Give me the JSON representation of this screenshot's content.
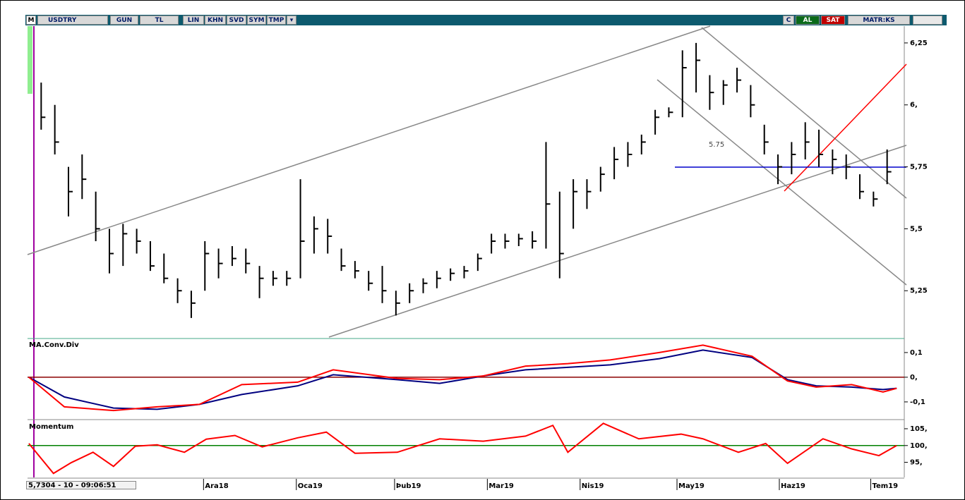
{
  "toolbar": {
    "menu": "M",
    "symbol": "USDTRY",
    "buttons": [
      "GUN",
      "TL",
      "LIN",
      "KHN",
      "SVD",
      "SYM",
      "TMP"
    ],
    "c": "C",
    "buy": "AL",
    "sell": "SAT",
    "brand": "MATR:KS"
  },
  "status": "5,7304 - 10 - 09:06:51",
  "chart_data": [
    {
      "type": "ohlc",
      "color": "#000000",
      "annotation": "5.75",
      "high": [
        6.09,
        6.0,
        5.75,
        5.8,
        5.65,
        5.5,
        5.52,
        5.5,
        5.45,
        5.4,
        5.3,
        5.25,
        5.45,
        5.42,
        5.43,
        5.42,
        5.35,
        5.33,
        5.33,
        5.7,
        5.55,
        5.54,
        5.42,
        5.37,
        5.33,
        5.35,
        5.25,
        5.28,
        5.3,
        5.33,
        5.34,
        5.35,
        5.4,
        5.48,
        5.48,
        5.48,
        5.49,
        5.85,
        5.65,
        5.7,
        5.7,
        5.75,
        5.83,
        5.85,
        5.88,
        5.98,
        5.99,
        6.22,
        6.25,
        6.12,
        6.1,
        6.15,
        6.08,
        5.92,
        5.8,
        5.85,
        5.93,
        5.9,
        5.82,
        5.8,
        5.72,
        5.65,
        5.82
      ],
      "low": [
        5.9,
        5.8,
        5.55,
        5.62,
        5.45,
        5.32,
        5.35,
        5.4,
        5.33,
        5.28,
        5.2,
        5.14,
        5.25,
        5.3,
        5.35,
        5.32,
        5.22,
        5.27,
        5.27,
        5.3,
        5.4,
        5.4,
        5.33,
        5.3,
        5.25,
        5.2,
        5.15,
        5.2,
        5.24,
        5.26,
        5.29,
        5.3,
        5.33,
        5.4,
        5.42,
        5.43,
        5.42,
        5.42,
        5.3,
        5.5,
        5.58,
        5.65,
        5.7,
        5.75,
        5.8,
        5.88,
        5.95,
        5.95,
        6.05,
        5.98,
        6.0,
        6.05,
        5.95,
        5.8,
        5.68,
        5.72,
        5.78,
        5.75,
        5.72,
        5.7,
        5.62,
        5.59,
        5.68
      ],
      "close": [
        5.95,
        5.85,
        5.65,
        5.7,
        5.5,
        5.4,
        5.48,
        5.45,
        5.35,
        5.3,
        5.25,
        5.2,
        5.4,
        5.36,
        5.38,
        5.36,
        5.3,
        5.3,
        5.3,
        5.45,
        5.5,
        5.47,
        5.35,
        5.33,
        5.28,
        5.25,
        5.2,
        5.25,
        5.28,
        5.3,
        5.32,
        5.33,
        5.38,
        5.45,
        5.45,
        5.46,
        5.45,
        5.6,
        5.4,
        5.65,
        5.65,
        5.72,
        5.78,
        5.8,
        5.85,
        5.95,
        5.97,
        6.15,
        6.18,
        6.05,
        6.08,
        6.1,
        6.0,
        5.85,
        5.75,
        5.8,
        5.85,
        5.8,
        5.78,
        5.75,
        5.65,
        5.62,
        5.73
      ],
      "xlim": [
        -1,
        63
      ],
      "xticks": [
        {
          "value": 11.9,
          "label": "Ara18"
        },
        {
          "value": 18.7,
          "label": "Oca19"
        },
        {
          "value": 25.9,
          "label": "Þub19"
        },
        {
          "value": 32.7,
          "label": "Mar19"
        },
        {
          "value": 39.5,
          "label": "Nis19"
        },
        {
          "value": 46.6,
          "label": "May19"
        },
        {
          "value": 54.1,
          "label": "Haz19"
        },
        {
          "value": 60.8,
          "label": "Tem19"
        }
      ],
      "ylim": [
        5.06,
        6.318
      ],
      "yticks": [
        {
          "value": 6.25,
          "label": "6,25"
        },
        {
          "value": 6,
          "label": "6,"
        },
        {
          "value": 5.75,
          "label": "5,75"
        },
        {
          "value": 5.5,
          "label": "5,5"
        },
        {
          "value": 5.25,
          "label": "5,25"
        }
      ]
    },
    {
      "type": "line",
      "title": "MA.Conv.Div",
      "ref_line": 0,
      "ref_color": "#8b0000",
      "x": [
        -0.9,
        1.7,
        5.3,
        8.5,
        11.6,
        14.7,
        18.8,
        21.4,
        26.1,
        29.2,
        32.4,
        35.5,
        38.6,
        41.7,
        45.3,
        48.5,
        52.1,
        54.7,
        56.8,
        59.4,
        61.7,
        62.7
      ],
      "series": [
        {
          "color": "#000080",
          "values": [
            0,
            -0.08,
            -0.125,
            -0.13,
            -0.11,
            -0.07,
            -0.035,
            0.01,
            -0.01,
            -0.025,
            0.005,
            0.03,
            0.04,
            0.05,
            0.075,
            0.11,
            0.08,
            -0.01,
            -0.035,
            -0.04,
            -0.05,
            -0.045
          ]
        },
        {
          "color": "#ff0000",
          "values": [
            0,
            -0.12,
            -0.135,
            -0.12,
            -0.11,
            -0.03,
            -0.02,
            0.03,
            -0.005,
            -0.01,
            0.005,
            0.045,
            0.055,
            0.07,
            0.1,
            0.13,
            0.085,
            -0.015,
            -0.04,
            -0.03,
            -0.06,
            -0.045
          ]
        }
      ],
      "xlim": [
        -1,
        63
      ],
      "ylim": [
        -0.166,
        0.154
      ],
      "yticks": [
        {
          "value": 0.1,
          "label": "0,1"
        },
        {
          "value": 0,
          "label": "0,"
        },
        {
          "value": -0.1,
          "label": "-0,1"
        }
      ]
    },
    {
      "type": "line",
      "title": "Momentum",
      "ref_line": 100,
      "ref_color": "#008000",
      "x": [
        -0.9,
        0.9,
        2.2,
        3.8,
        5.3,
        6.9,
        8.5,
        10.5,
        12.1,
        14.2,
        16.2,
        18.8,
        20.9,
        23.0,
        26.1,
        29.2,
        32.4,
        35.5,
        37.5,
        38.6,
        41.2,
        43.8,
        46.9,
        48.5,
        51.1,
        53.1,
        54.7,
        57.3,
        59.4,
        61.4,
        62.7
      ],
      "series": [
        {
          "color": "#ff0000",
          "values": [
            100.6,
            91.7,
            94.9,
            98,
            93.8,
            99.8,
            100.2,
            98,
            101.9,
            103,
            99.6,
            102.3,
            104,
            97.7,
            98,
            102,
            101.3,
            102.8,
            106,
            98,
            106.6,
            102,
            103.4,
            102,
            98,
            100.6,
            94.7,
            102,
            99,
            97,
            100
          ]
        }
      ],
      "xlim": [
        -1,
        63
      ],
      "ylim": [
        90.5,
        107.3
      ],
      "yticks": [
        {
          "value": 105,
          "label": "105,"
        },
        {
          "value": 100,
          "label": "100,"
        },
        {
          "value": 95,
          "label": "95,"
        }
      ]
    }
  ]
}
